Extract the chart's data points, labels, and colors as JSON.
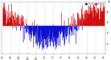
{
  "bg_color": "#ffffff",
  "plot_bg_color": "#ffffff",
  "grid_color": "#aaaaaa",
  "bar_blue_color": "#0000cc",
  "bar_red_color": "#cc0000",
  "text_color": "#000000",
  "ylim": [
    0,
    100
  ],
  "yticks": [
    20,
    40,
    60,
    80,
    100
  ],
  "ytick_labels": [
    "2",
    "4",
    "6",
    "8",
    "10"
  ],
  "n_days": 365,
  "n_gridlines": 13,
  "legend_blue_label": "Dew Point",
  "legend_red_label": "Humidity",
  "seed": 42
}
